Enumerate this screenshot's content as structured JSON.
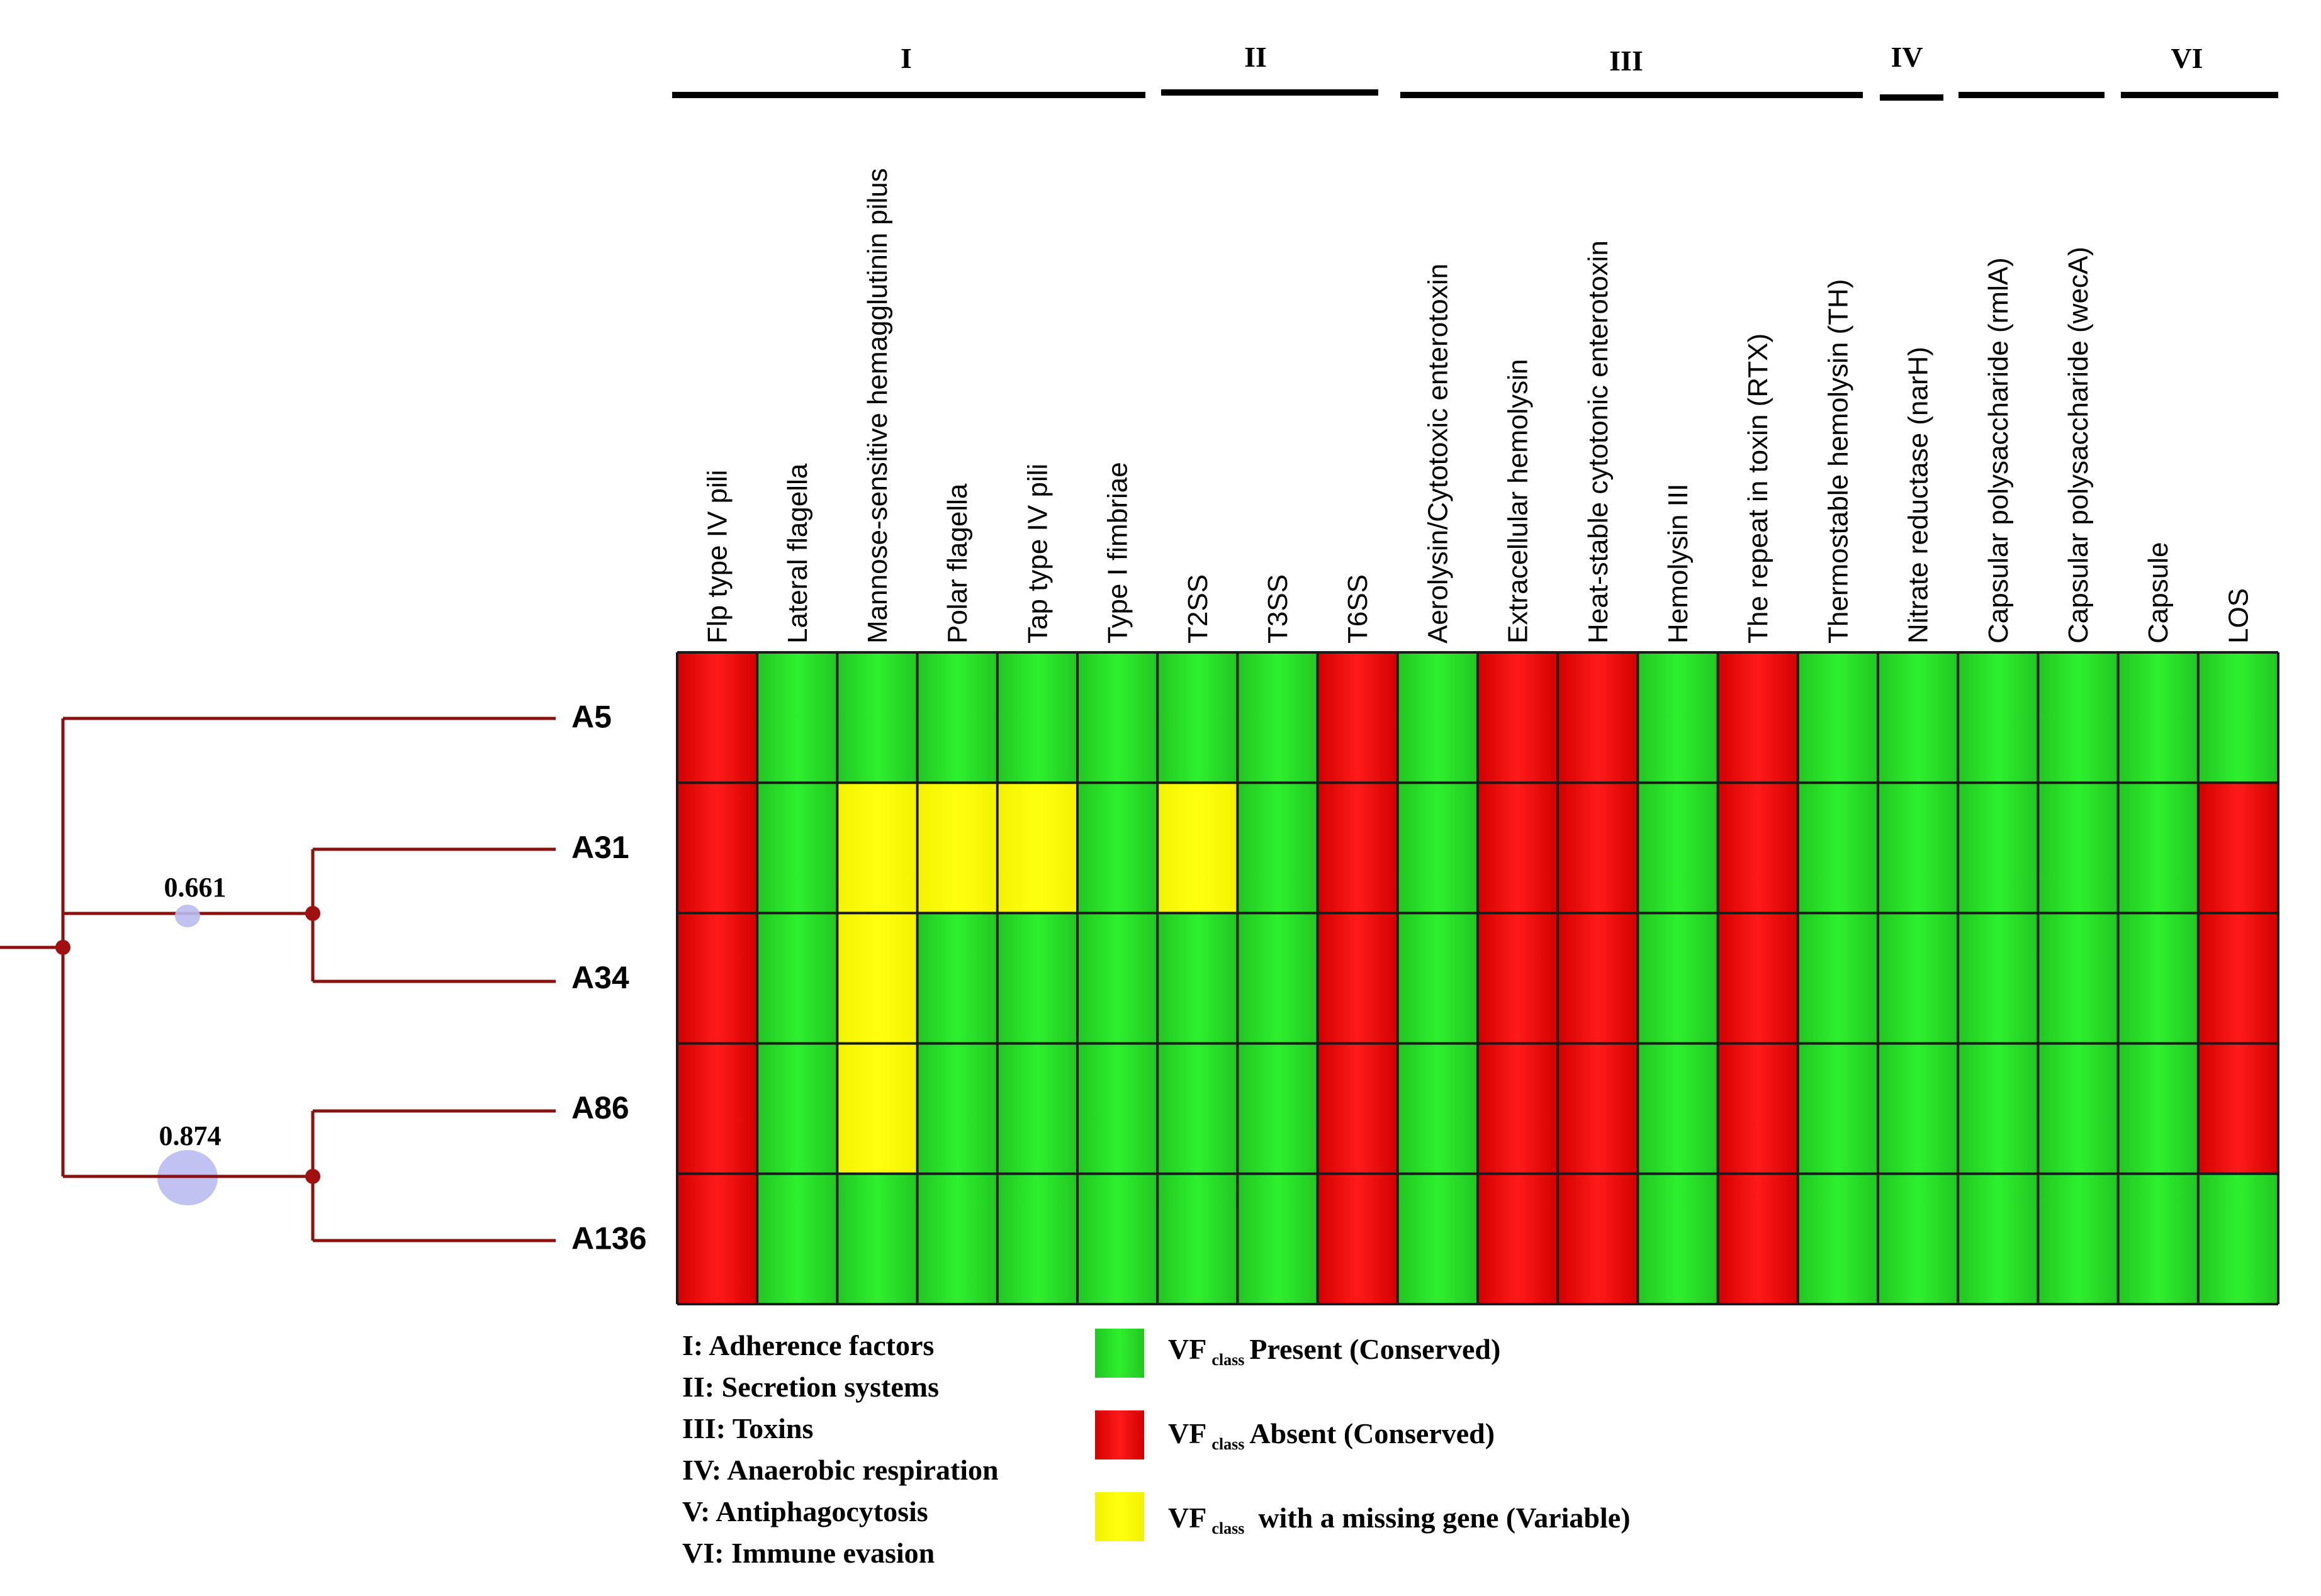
{
  "chart_data": {
    "type": "heatmap",
    "groups": [
      {
        "label": "I",
        "first": 0,
        "last": 5
      },
      {
        "label": "II",
        "first": 6,
        "last": 8
      },
      {
        "label": "III",
        "first": 9,
        "last": 14
      },
      {
        "label": "IV",
        "first": 15,
        "last": 15
      },
      {
        "label": "",
        "first": 16,
        "last": 17
      },
      {
        "label": "VI",
        "first": 18,
        "last": 19
      }
    ],
    "columns": [
      "Flp type IV pili",
      "Lateral flagella",
      "Mannose-sensitive hemagglutinin pilus",
      "Polar flagella",
      "Tap type IV pili",
      "Type I fimbriae",
      "T2SS",
      "T3SS",
      "T6SS",
      "Aerolysin/Cytotoxic enterotoxin",
      "Extracellular hemolysin",
      "Heat-stable cytotonic enterotoxin",
      "Hemolysin III",
      "The repeat in toxin (RTX)",
      "Thermostable hemolysin (TH)",
      "Nitrate reductase (narH)",
      "Capsular polysaccharide (rmlA)",
      "Capsular polysaccharide (wecA)",
      "Capsule",
      "LOS"
    ],
    "rows": [
      "A5",
      "A31",
      "A34",
      "A86",
      "A136"
    ],
    "values": [
      [
        "A",
        "P",
        "P",
        "P",
        "P",
        "P",
        "P",
        "P",
        "A",
        "P",
        "A",
        "A",
        "P",
        "A",
        "P",
        "P",
        "P",
        "P",
        "P",
        "P"
      ],
      [
        "A",
        "P",
        "V",
        "V",
        "V",
        "P",
        "V",
        "P",
        "A",
        "P",
        "A",
        "A",
        "P",
        "A",
        "P",
        "P",
        "P",
        "P",
        "P",
        "A"
      ],
      [
        "A",
        "P",
        "V",
        "P",
        "P",
        "P",
        "P",
        "P",
        "A",
        "P",
        "A",
        "A",
        "P",
        "A",
        "P",
        "P",
        "P",
        "P",
        "P",
        "A"
      ],
      [
        "A",
        "P",
        "V",
        "P",
        "P",
        "P",
        "P",
        "P",
        "A",
        "P",
        "A",
        "A",
        "P",
        "A",
        "P",
        "P",
        "P",
        "P",
        "P",
        "A"
      ],
      [
        "A",
        "P",
        "P",
        "P",
        "P",
        "P",
        "P",
        "P",
        "A",
        "P",
        "A",
        "A",
        "P",
        "A",
        "P",
        "P",
        "P",
        "P",
        "P",
        "P"
      ]
    ],
    "colors": {
      "P": "#00e600",
      "A": "#ee0000",
      "V": "#ffff00"
    },
    "tree": {
      "support": [
        {
          "value": "0.661",
          "clade": [
            "A31",
            "A34"
          ]
        },
        {
          "value": "0.874",
          "clade": [
            "A86",
            "A136"
          ]
        }
      ]
    },
    "group_legend": [
      "I: Adherence factors",
      "II: Secretion systems",
      "III: Toxins",
      "IV: Anaerobic respiration",
      "V: Antiphagocytosis",
      "VI: Immune evasion"
    ],
    "color_legend": [
      {
        "key": "P",
        "prefix": "VF",
        "sub": "class",
        "text": "Present (Conserved)"
      },
      {
        "key": "A",
        "prefix": "VF",
        "sub": "class",
        "text": "Absent (Conserved)"
      },
      {
        "key": "V",
        "prefix": "VF",
        "sub": "class",
        "text": "with a missing gene (Variable)"
      }
    ]
  }
}
